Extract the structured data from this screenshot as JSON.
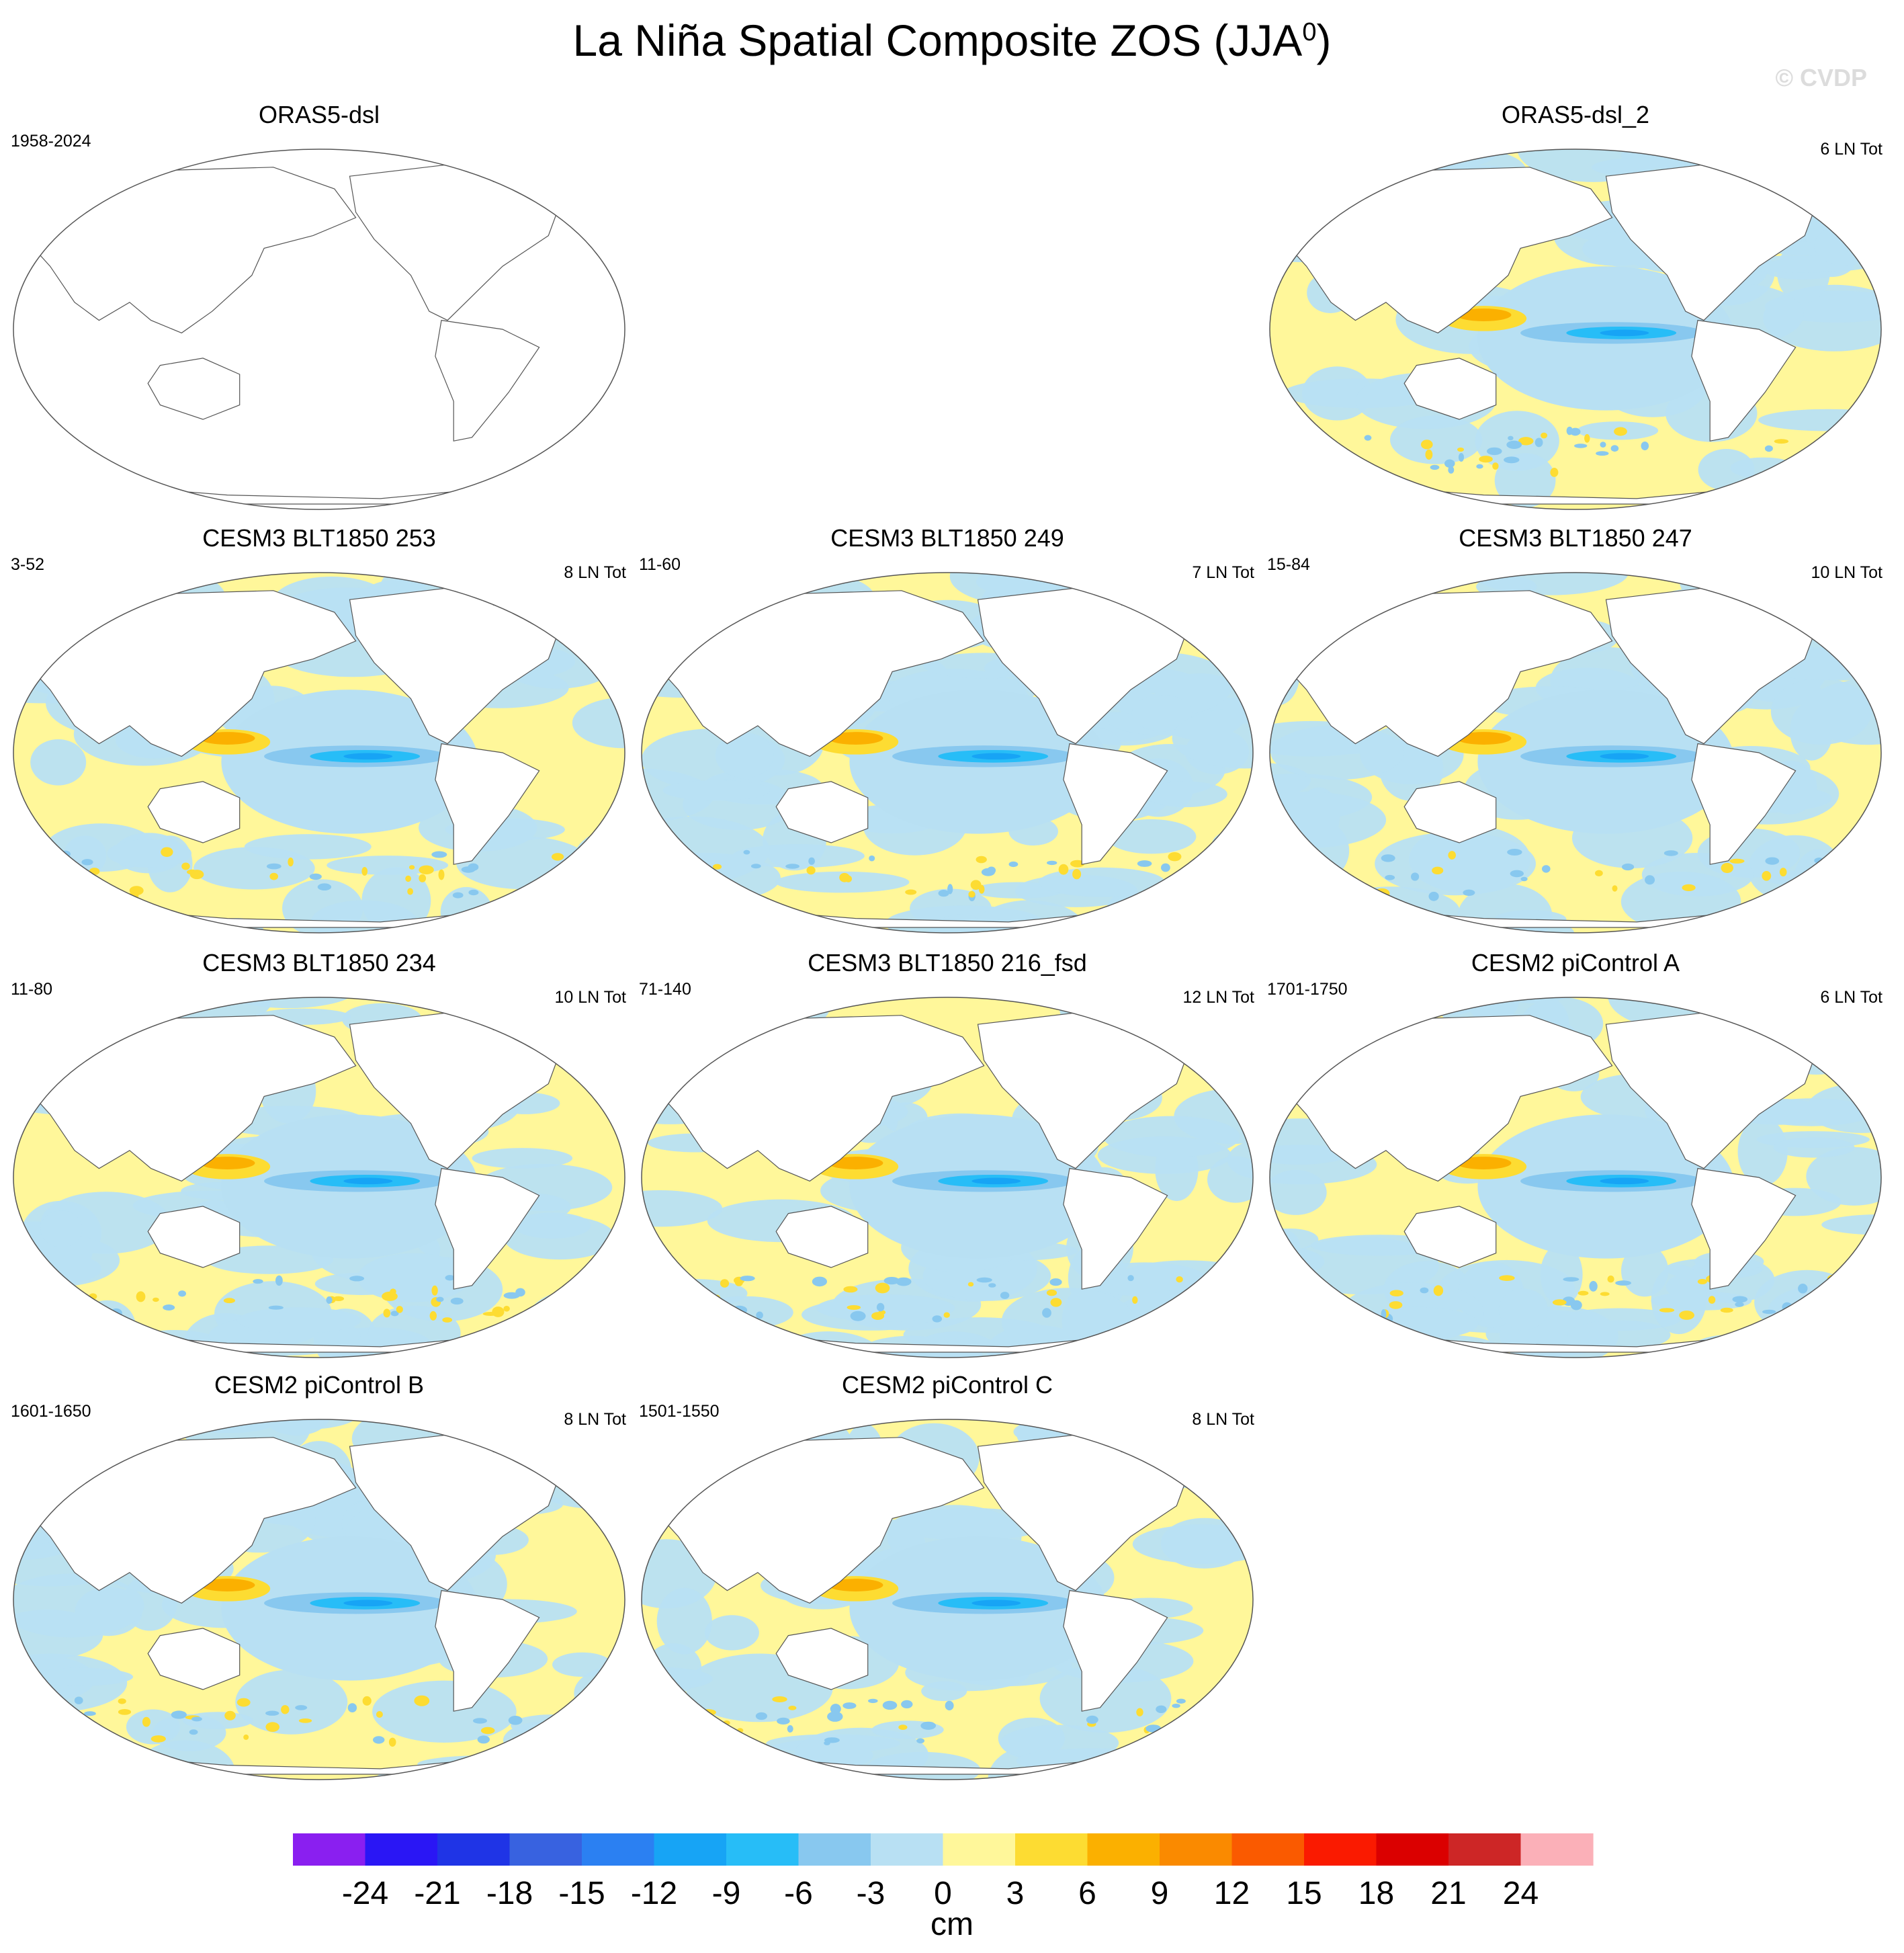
{
  "title": {
    "main": "La Niña Spatial Composite ZOS (JJA",
    "sup": "0",
    "close": ")"
  },
  "watermark": "© CVDP",
  "panels": [
    {
      "id": "p1",
      "title": "ORAS5-dsl",
      "left_label": "1958-2024",
      "right_label": "",
      "empty": true
    },
    {
      "id": "p2",
      "title": "ORAS5-dsl_2",
      "left_label": "",
      "right_label": "6 LN Tot",
      "empty": false
    },
    {
      "id": "p3",
      "title": "CESM3 BLT1850 253",
      "left_label": "3-52",
      "right_label": "8 LN Tot",
      "empty": false
    },
    {
      "id": "p4",
      "title": "CESM3 BLT1850 249",
      "left_label": "11-60",
      "right_label": "7 LN Tot",
      "empty": false
    },
    {
      "id": "p5",
      "title": "CESM3 BLT1850 247",
      "left_label": "15-84",
      "right_label": "10 LN Tot",
      "empty": false
    },
    {
      "id": "p6",
      "title": "CESM3 BLT1850 234",
      "left_label": "11-80",
      "right_label": "10 LN Tot",
      "empty": false
    },
    {
      "id": "p7",
      "title": "CESM3 BLT1850 216_fsd",
      "left_label": "71-140",
      "right_label": "12 LN Tot",
      "empty": false
    },
    {
      "id": "p8",
      "title": "CESM2 piControl A",
      "left_label": "1701-1750",
      "right_label": "6 LN Tot",
      "empty": false
    },
    {
      "id": "p9",
      "title": "CESM2 piControl B",
      "left_label": "1601-1650",
      "right_label": "8 LN Tot",
      "empty": false
    },
    {
      "id": "p10",
      "title": "CESM2 piControl C",
      "left_label": "1501-1550",
      "right_label": "8 LN Tot",
      "empty": false
    }
  ],
  "colorbar": {
    "units": "cm",
    "colors": [
      "#8a1ff0",
      "#2a16f5",
      "#1f34e6",
      "#3862e0",
      "#2b80f2",
      "#17a4f5",
      "#27bdf7",
      "#88c8ef",
      "#b8e0f3",
      "#fff79a",
      "#fddc32",
      "#fbb000",
      "#fa8a00",
      "#fa5a00",
      "#fa1a00",
      "#db0000",
      "#cd2626",
      "#fbb0b8"
    ],
    "ticks": [
      "-24",
      "-21",
      "-18",
      "-15",
      "-12",
      "-9",
      "-6",
      "-3",
      "0",
      "3",
      "6",
      "9",
      "12",
      "15",
      "18",
      "21",
      "24"
    ]
  }
}
